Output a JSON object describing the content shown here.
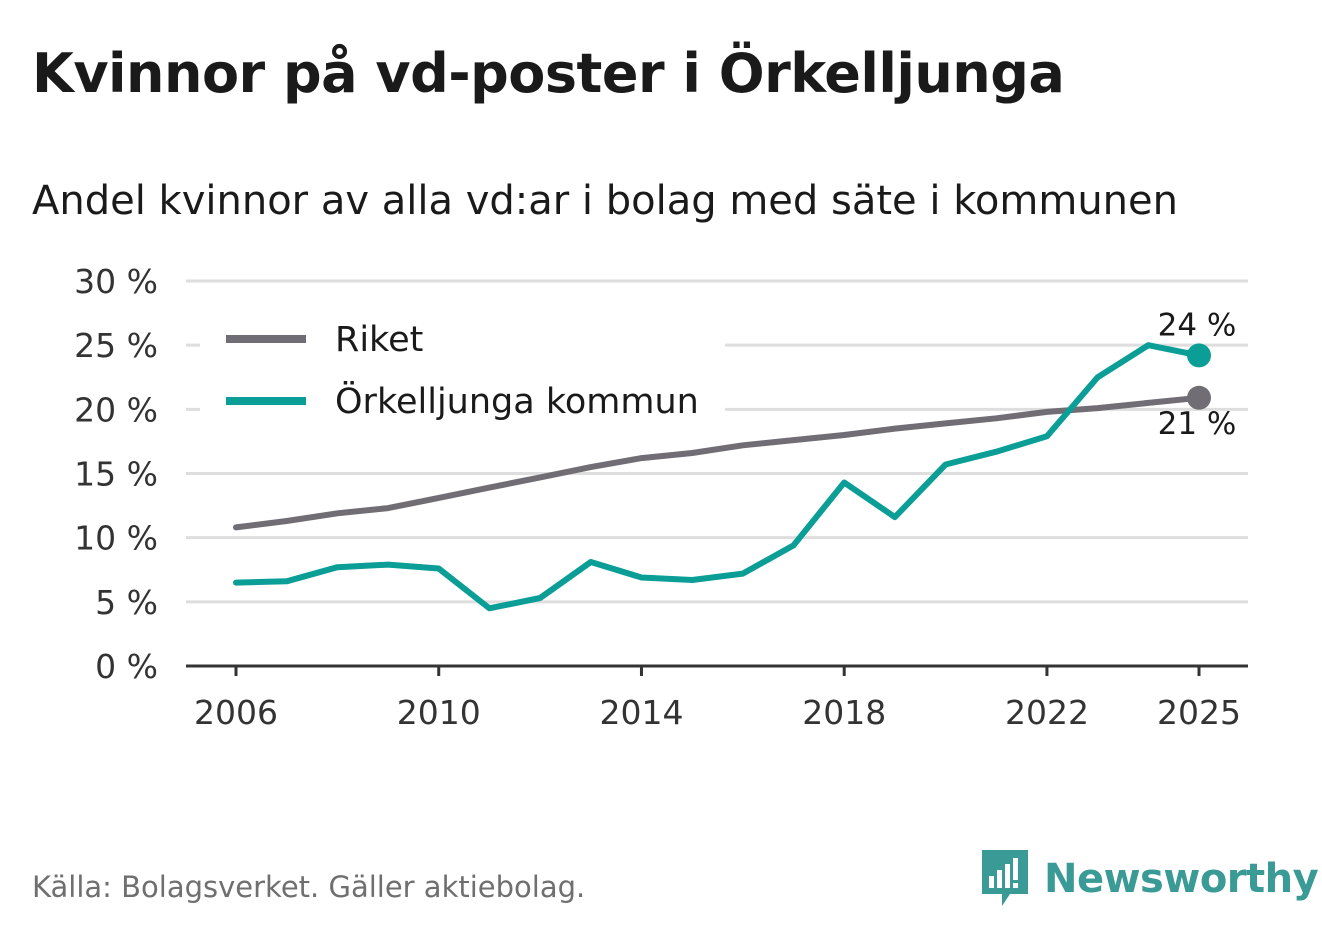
{
  "header": {
    "title": "Kvinnor på vd-poster i Örkelljunga",
    "subtitle": "Andel kvinnor av alla vd:ar i bolag med säte i kommunen"
  },
  "footer": {
    "source": "Källa: Bolagsverket. Gäller aktiebolag.",
    "brand": "Newsworthy"
  },
  "colors": {
    "riket": "#706e74",
    "kommun": "#0a9e97",
    "grid": "#dedede",
    "axis": "#333333",
    "brand": "#3a9a95"
  },
  "chart_data": {
    "type": "line",
    "title": "Kvinnor på vd-poster i Örkelljunga",
    "subtitle": "Andel kvinnor av alla vd:ar i bolag med säte i kommunen",
    "xlabel": "",
    "ylabel": "",
    "x": [
      2006,
      2007,
      2008,
      2009,
      2010,
      2011,
      2012,
      2013,
      2014,
      2015,
      2016,
      2017,
      2018,
      2019,
      2020,
      2021,
      2022,
      2023,
      2024,
      2025
    ],
    "x_ticks": [
      2006,
      2010,
      2014,
      2018,
      2022,
      2025
    ],
    "x_tick_labels": [
      "2006",
      "2010",
      "2014",
      "2018",
      "2022",
      "2025"
    ],
    "ylim": [
      0,
      30
    ],
    "y_ticks": [
      0,
      5,
      10,
      15,
      20,
      25,
      30
    ],
    "y_tick_labels": [
      "0 %",
      "5 %",
      "10 %",
      "15 %",
      "20 %",
      "25 %",
      "30 %"
    ],
    "grid": true,
    "legend_position": "top-left",
    "series": [
      {
        "name": "Riket",
        "color": "#706e74",
        "values": [
          10.8,
          11.3,
          11.9,
          12.3,
          13.1,
          13.9,
          14.7,
          15.5,
          16.2,
          16.6,
          17.2,
          17.6,
          18.0,
          18.5,
          18.9,
          19.3,
          19.8,
          20.1,
          20.5,
          20.9
        ],
        "end_label": "21 %",
        "end_label_position": "below"
      },
      {
        "name": "Örkelljunga kommun",
        "color": "#0a9e97",
        "values": [
          6.5,
          6.6,
          7.7,
          7.9,
          7.6,
          4.5,
          5.3,
          8.1,
          6.9,
          6.7,
          7.2,
          9.4,
          14.3,
          11.6,
          15.7,
          16.7,
          17.9,
          22.5,
          25.0,
          24.2
        ],
        "end_label": "24 %",
        "end_label_position": "above"
      }
    ]
  }
}
